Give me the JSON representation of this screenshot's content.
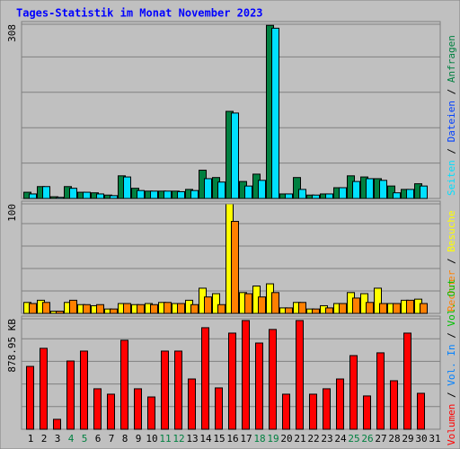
{
  "chart_data": [
    {
      "type": "bar",
      "title": "Tages-Statistik im Monat November 2023",
      "ylim": [
        0,
        308
      ],
      "yticks": [
        308
      ],
      "legend_separator": "/",
      "series": [
        {
          "name": "Seiten",
          "color": "#00e0ff",
          "values": [
            8,
            21,
            2,
            18,
            11,
            8,
            5,
            38,
            14,
            13,
            13,
            12,
            14,
            35,
            29,
            151,
            22,
            32,
            301,
            8,
            16,
            6,
            8,
            19,
            30,
            35,
            32,
            10,
            16,
            22,
            null
          ]
        },
        {
          "name": "Dateien",
          "color": "#0040ff",
          "values": [
            null,
            null,
            null,
            null,
            null,
            null,
            null,
            null,
            null,
            null,
            null,
            null,
            null,
            null,
            null,
            null,
            null,
            null,
            null,
            null,
            null,
            null,
            null,
            null,
            null,
            null,
            null,
            null,
            null,
            null,
            null
          ]
        },
        {
          "name": "Anfragen",
          "color": "#008040",
          "values": [
            11,
            21,
            3,
            21,
            11,
            10,
            6,
            40,
            18,
            13,
            13,
            13,
            16,
            50,
            37,
            154,
            30,
            43,
            306,
            8,
            37,
            6,
            8,
            19,
            40,
            38,
            35,
            22,
            16,
            26,
            null
          ]
        }
      ]
    },
    {
      "type": "bar",
      "ylim": [
        0,
        100
      ],
      "yticks": [
        100
      ],
      "series": [
        {
          "name": "Rechner",
          "color": "#ff8000",
          "values": [
            9,
            10,
            2,
            12,
            8,
            8,
            4,
            9,
            8,
            8,
            10,
            9,
            8,
            15,
            8,
            84,
            18,
            15,
            19,
            5,
            10,
            4,
            5,
            9,
            14,
            10,
            9,
            9,
            12,
            9,
            null
          ]
        },
        {
          "name": "Besuche",
          "color": "#ffff00",
          "values": [
            10,
            12,
            2,
            10,
            8,
            7,
            4,
            9,
            8,
            9,
            10,
            9,
            12,
            23,
            18,
            100,
            19,
            25,
            27,
            5,
            10,
            4,
            7,
            9,
            19,
            18,
            23,
            9,
            12,
            13,
            null
          ]
        }
      ]
    },
    {
      "type": "bar",
      "ylim": [
        0,
        878.95
      ],
      "yticks": [
        {
          "value": 878.95,
          "label": "878.95 KB"
        }
      ],
      "categories": [
        "1",
        "2",
        "3",
        "4",
        "5",
        "6",
        "7",
        "8",
        "9",
        "10",
        "11",
        "12",
        "13",
        "14",
        "15",
        "16",
        "17",
        "18",
        "19",
        "20",
        "21",
        "22",
        "23",
        "24",
        "25",
        "26",
        "27",
        "28",
        "29",
        "30",
        "31"
      ],
      "highlight": [
        3,
        4,
        10,
        11,
        17,
        18,
        24,
        25
      ],
      "highlight_color": "#008040",
      "series": [
        {
          "name": "Volumen",
          "color": "#ff0000",
          "values": [
            500,
            644,
            79,
            543,
            622,
            322,
            279,
            708,
            322,
            257,
            622,
            622,
            400,
            808,
            329,
            765,
            865,
            686,
            794,
            279,
            865,
            279,
            322,
            400,
            586,
            265,
            608,
            386,
            765,
            286,
            null
          ]
        },
        {
          "name": "Vol. In",
          "color": "#0080ff",
          "values": [
            null,
            null,
            null,
            null,
            null,
            null,
            null,
            null,
            null,
            null,
            null,
            null,
            null,
            null,
            null,
            null,
            null,
            null,
            null,
            null,
            null,
            null,
            null,
            null,
            null,
            null,
            null,
            null,
            null,
            null,
            null
          ]
        },
        {
          "name": "Vol. Out",
          "color": "#00c000",
          "values": [
            null,
            null,
            null,
            null,
            null,
            null,
            null,
            null,
            null,
            null,
            null,
            null,
            null,
            null,
            null,
            null,
            null,
            null,
            null,
            null,
            null,
            null,
            null,
            null,
            null,
            null,
            null,
            null,
            null,
            null,
            null
          ]
        }
      ]
    }
  ]
}
